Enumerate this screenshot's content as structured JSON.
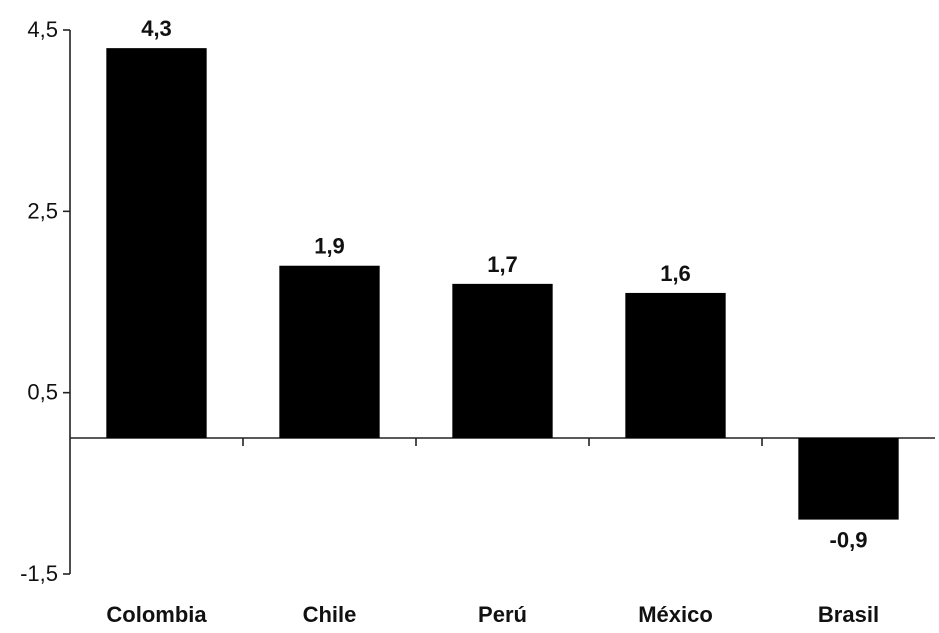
{
  "chart_data": {
    "type": "bar",
    "categories": [
      "Colombia",
      "Chile",
      "Perú",
      "México",
      "Brasil"
    ],
    "values": [
      4.3,
      1.9,
      1.7,
      1.6,
      -0.9
    ],
    "value_labels": [
      "4,3",
      "1,9",
      "1,7",
      "1,6",
      "-0,9"
    ],
    "ylim": [
      -1.5,
      4.5
    ],
    "yticks": [
      4.5,
      2.5,
      0.5,
      -1.5
    ],
    "ytick_labels": [
      "4,5",
      "2,5",
      "0,5",
      "-1,5"
    ],
    "grid": false,
    "bar_color": "#000000",
    "title": "",
    "xlabel": "",
    "ylabel": ""
  }
}
